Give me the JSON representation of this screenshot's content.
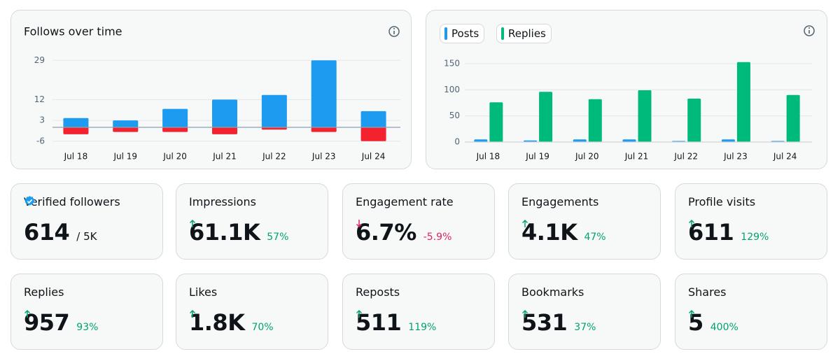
{
  "chart_data": [
    {
      "type": "bar",
      "title": "Follows over time",
      "stacked": true,
      "categories": [
        "Jul 18",
        "Jul 19",
        "Jul 20",
        "Jul 21",
        "Jul 22",
        "Jul 23",
        "Jul 24"
      ],
      "series": [
        {
          "color": "#1d9bf0",
          "values": [
            4,
            3,
            8,
            12,
            14,
            29,
            7
          ]
        },
        {
          "color": "#f4212e",
          "values": [
            -3,
            -2,
            -2,
            -3,
            -1,
            -2,
            -6
          ]
        }
      ],
      "ylim": [
        -8,
        31
      ],
      "yticks": [
        -6,
        3,
        12,
        29
      ],
      "grid": true
    },
    {
      "type": "bar",
      "stacked": false,
      "categories": [
        "Jul 18",
        "Jul 19",
        "Jul 20",
        "Jul 21",
        "Jul 22",
        "Jul 23",
        "Jul 24"
      ],
      "series": [
        {
          "name": "Posts",
          "color": "#1d9bf0",
          "values": [
            5,
            3,
            5,
            5,
            2,
            5,
            2
          ]
        },
        {
          "name": "Replies",
          "color": "#00ba7c",
          "values": [
            76,
            96,
            82,
            99,
            83,
            153,
            90
          ]
        }
      ],
      "ylim": [
        0,
        160
      ],
      "yticks": [
        0,
        50,
        100,
        150
      ],
      "grid": true
    }
  ],
  "cards": [
    {
      "title": "Verified followers",
      "value": "614",
      "suffix": "/ 5K",
      "verified": true
    },
    {
      "title": "Impressions",
      "value": "61.1K",
      "change": "57%",
      "direction": "up"
    },
    {
      "title": "Engagement rate",
      "value": "6.7%",
      "change": "-5.9%",
      "direction": "down"
    },
    {
      "title": "Engagements",
      "value": "4.1K",
      "change": "47%",
      "direction": "up"
    },
    {
      "title": "Profile visits",
      "value": "611",
      "change": "129%",
      "direction": "up"
    },
    {
      "title": "Replies",
      "value": "957",
      "change": "93%",
      "direction": "up"
    },
    {
      "title": "Likes",
      "value": "1.8K",
      "change": "70%",
      "direction": "up"
    },
    {
      "title": "Reposts",
      "value": "511",
      "change": "119%",
      "direction": "up"
    },
    {
      "title": "Bookmarks",
      "value": "531",
      "change": "37%",
      "direction": "up"
    },
    {
      "title": "Shares",
      "value": "5",
      "change": "400%",
      "direction": "up"
    }
  ]
}
